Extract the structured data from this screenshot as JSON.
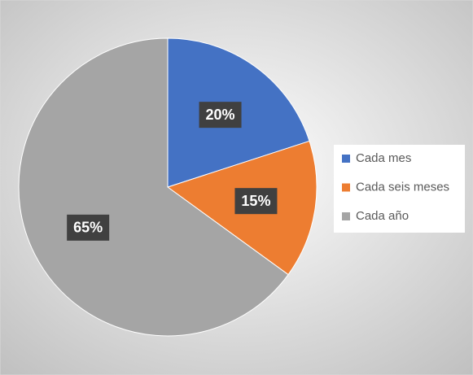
{
  "chart_data": {
    "type": "pie",
    "categories": [
      "Cada mes",
      "Cada seis meses",
      "Cada año"
    ],
    "values": [
      20,
      15,
      65
    ],
    "value_labels": [
      "20%",
      "15%",
      "65%"
    ],
    "colors": [
      "#4472c4",
      "#ed7d31",
      "#a5a5a5"
    ],
    "legend": "right"
  }
}
